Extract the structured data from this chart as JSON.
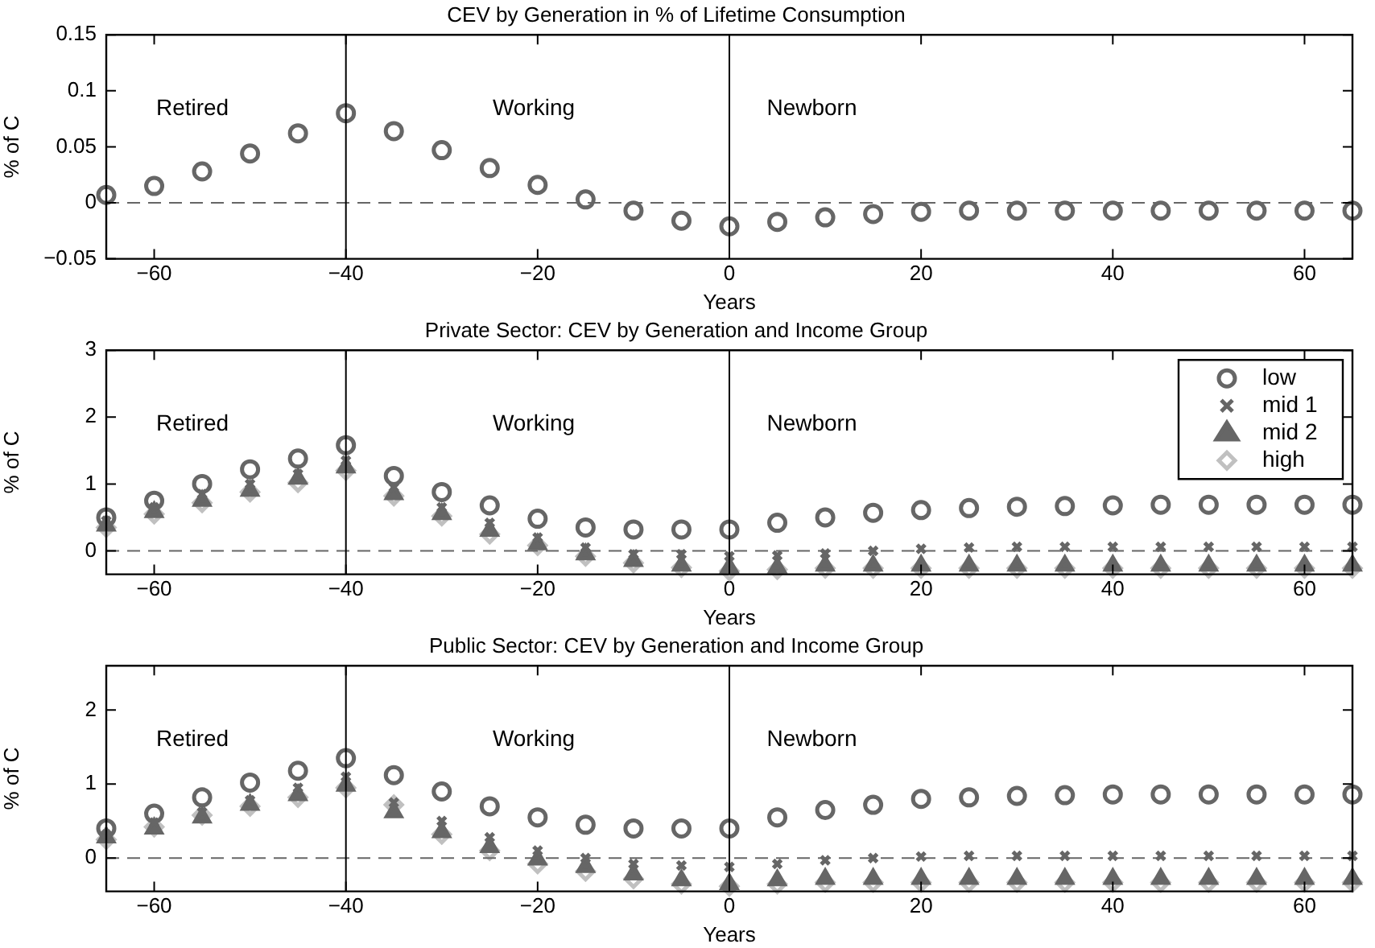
{
  "chart_data": [
    {
      "type": "scatter",
      "title": "CEV by Generation in % of Lifetime Consumption",
      "xlabel": "Years",
      "ylabel": "% of C",
      "grid": false,
      "legend": false,
      "x": [
        -65,
        -60,
        -55,
        -50,
        -45,
        -40,
        -35,
        -30,
        -25,
        -20,
        -15,
        -10,
        -5,
        0,
        5,
        10,
        15,
        20,
        25,
        30,
        35,
        40,
        45,
        50,
        55,
        60,
        65
      ],
      "series": [
        {
          "color": "#666666",
          "marker": "circle",
          "values": [
            0.007,
            0.015,
            0.028,
            0.044,
            0.062,
            0.08,
            0.064,
            0.047,
            0.031,
            0.016,
            0.003,
            -0.007,
            -0.016,
            -0.021,
            -0.017,
            -0.013,
            -0.01,
            -0.008,
            -0.007,
            -0.007,
            -0.007,
            -0.007,
            -0.007,
            -0.007,
            -0.007,
            -0.007,
            -0.007
          ]
        }
      ],
      "xlim": [
        -65,
        65
      ],
      "xticks": [
        -60,
        -40,
        -20,
        0,
        20,
        40,
        60
      ],
      "ylim": [
        -0.05,
        0.15
      ],
      "yticks": [
        -0.05,
        0,
        0.05,
        0.1,
        0.15
      ],
      "ref_lines": [
        {
          "axis": "y",
          "value": 0,
          "line_style": "dashed",
          "color": "#666666"
        },
        {
          "axis": "x",
          "value": -40,
          "color": "#000000"
        },
        {
          "axis": "x",
          "value": 0,
          "color": "#000000"
        }
      ],
      "annotations": [
        "Retired",
        "Working",
        "Newborn"
      ]
    },
    {
      "type": "scatter",
      "title": "Private Sector: CEV by Generation and Income Group",
      "xlabel": "Years",
      "ylabel": "% of C",
      "grid": false,
      "legend": "top right",
      "x": [
        -65,
        -60,
        -55,
        -50,
        -45,
        -40,
        -35,
        -30,
        -25,
        -20,
        -15,
        -10,
        -5,
        0,
        5,
        10,
        15,
        20,
        25,
        30,
        35,
        40,
        45,
        50,
        55,
        60,
        65
      ],
      "series": [
        {
          "name": "low",
          "color": "#666666",
          "marker": "circle",
          "values": [
            0.5,
            0.75,
            1.0,
            1.22,
            1.38,
            1.58,
            1.12,
            0.88,
            0.68,
            0.48,
            0.35,
            0.32,
            0.32,
            0.32,
            0.42,
            0.5,
            0.57,
            0.61,
            0.64,
            0.66,
            0.67,
            0.68,
            0.69,
            0.69,
            0.69,
            0.69,
            0.69
          ]
        },
        {
          "name": "mid 1",
          "color": "#666666",
          "marker": "cross",
          "values": [
            0.45,
            0.65,
            0.85,
            1.0,
            1.15,
            1.35,
            0.95,
            0.65,
            0.42,
            0.2,
            0.05,
            -0.05,
            -0.05,
            -0.08,
            -0.07,
            -0.04,
            0.0,
            0.03,
            0.05,
            0.06,
            0.06,
            0.06,
            0.06,
            0.06,
            0.06,
            0.06,
            0.06
          ]
        },
        {
          "name": "mid 2",
          "color": "#666666",
          "marker": "triangle",
          "values": [
            0.38,
            0.58,
            0.75,
            0.9,
            1.08,
            1.25,
            0.85,
            0.55,
            0.3,
            0.1,
            -0.05,
            -0.15,
            -0.22,
            -0.25,
            -0.25,
            -0.22,
            -0.22,
            -0.22,
            -0.22,
            -0.22,
            -0.22,
            -0.22,
            -0.22,
            -0.22,
            -0.22,
            -0.22,
            -0.22
          ]
        },
        {
          "name": "high",
          "color": "#c0c0c0",
          "marker": "diamond",
          "values": [
            0.35,
            0.55,
            0.72,
            0.88,
            1.02,
            1.2,
            0.82,
            0.52,
            0.25,
            0.08,
            -0.08,
            -0.18,
            -0.25,
            -0.3,
            -0.28,
            -0.26,
            -0.26,
            -0.26,
            -0.26,
            -0.26,
            -0.26,
            -0.26,
            -0.26,
            -0.26,
            -0.26,
            -0.26,
            -0.26
          ]
        }
      ],
      "xlim": [
        -65,
        65
      ],
      "xticks": [
        -60,
        -40,
        -20,
        0,
        20,
        40,
        60
      ],
      "ylim": [
        -0.35,
        3
      ],
      "yticks": [
        0,
        1,
        2,
        3
      ],
      "ref_lines": [
        {
          "axis": "y",
          "value": 0,
          "line_style": "dashed",
          "color": "#666666"
        },
        {
          "axis": "x",
          "value": -40,
          "color": "#000000"
        },
        {
          "axis": "x",
          "value": 0,
          "color": "#000000"
        }
      ],
      "annotations": [
        "Retired",
        "Working",
        "Newborn"
      ]
    },
    {
      "type": "scatter",
      "title": "Public Sector: CEV by Generation and Income Group",
      "xlabel": "Years",
      "ylabel": "% of C",
      "grid": false,
      "legend": false,
      "x": [
        -65,
        -60,
        -55,
        -50,
        -45,
        -40,
        -35,
        -30,
        -25,
        -20,
        -15,
        -10,
        -5,
        0,
        5,
        10,
        15,
        20,
        25,
        30,
        35,
        40,
        45,
        50,
        55,
        60,
        65
      ],
      "series": [
        {
          "color": "#666666",
          "marker": "circle",
          "values": [
            0.4,
            0.6,
            0.82,
            1.02,
            1.18,
            1.35,
            1.12,
            0.9,
            0.7,
            0.55,
            0.45,
            0.4,
            0.4,
            0.4,
            0.55,
            0.65,
            0.72,
            0.8,
            0.82,
            0.84,
            0.85,
            0.86,
            0.86,
            0.86,
            0.86,
            0.86,
            0.86
          ]
        },
        {
          "color": "#666666",
          "marker": "cross",
          "values": [
            0.32,
            0.48,
            0.62,
            0.78,
            0.95,
            1.1,
            0.75,
            0.5,
            0.28,
            0.1,
            0.0,
            -0.08,
            -0.1,
            -0.12,
            -0.08,
            -0.03,
            0.0,
            0.02,
            0.03,
            0.03,
            0.03,
            0.03,
            0.03,
            0.03,
            0.03,
            0.03,
            0.03
          ]
        },
        {
          "color": "#666666",
          "marker": "triangle",
          "values": [
            0.28,
            0.4,
            0.55,
            0.72,
            0.85,
            0.98,
            0.62,
            0.35,
            0.15,
            -0.02,
            -0.12,
            -0.22,
            -0.3,
            -0.35,
            -0.3,
            -0.28,
            -0.28,
            -0.28,
            -0.28,
            -0.28,
            -0.28,
            -0.28,
            -0.28,
            -0.28,
            -0.28,
            -0.28,
            -0.28
          ]
        },
        {
          "color": "#c0c0c0",
          "marker": "diamond",
          "values": [
            0.25,
            0.42,
            0.58,
            0.7,
            0.82,
            0.95,
            0.72,
            0.32,
            0.1,
            -0.08,
            -0.18,
            -0.28,
            -0.35,
            -0.38,
            -0.35,
            -0.33,
            -0.33,
            -0.33,
            -0.33,
            -0.33,
            -0.33,
            -0.33,
            -0.33,
            -0.33,
            -0.33,
            -0.33,
            -0.33
          ]
        }
      ],
      "xlim": [
        -65,
        65
      ],
      "xticks": [
        -60,
        -40,
        -20,
        0,
        20,
        40,
        60
      ],
      "ylim": [
        -0.45,
        2.6
      ],
      "yticks": [
        0,
        1,
        2
      ],
      "ref_lines": [
        {
          "axis": "y",
          "value": 0,
          "line_style": "dashed",
          "color": "#666666"
        },
        {
          "axis": "x",
          "value": -40,
          "color": "#000000"
        },
        {
          "axis": "x",
          "value": 0,
          "color": "#000000"
        }
      ],
      "annotations": [
        "Retired",
        "Working",
        "Newborn"
      ]
    }
  ]
}
